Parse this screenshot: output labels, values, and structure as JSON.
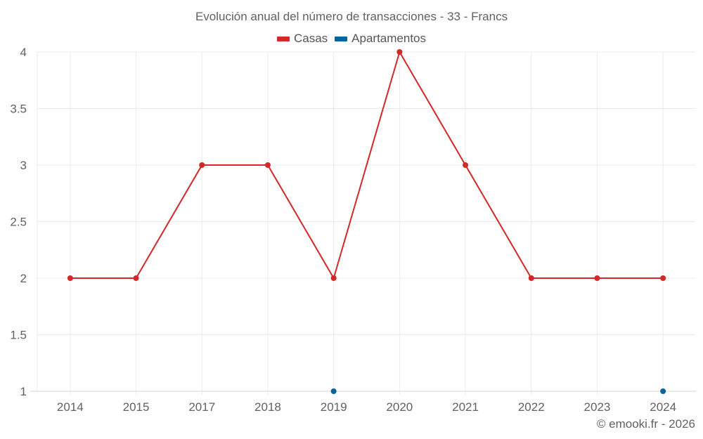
{
  "chart_data": {
    "type": "line",
    "title": "Evolución anual del número de transacciones - 33 - Francs",
    "categories": [
      "2014",
      "2015",
      "2017",
      "2018",
      "2019",
      "2020",
      "2021",
      "2022",
      "2023",
      "2024"
    ],
    "series": [
      {
        "name": "Casas",
        "color": "#d62728",
        "values": [
          2,
          2,
          3,
          3,
          2,
          4,
          3,
          2,
          2,
          2
        ]
      },
      {
        "name": "Apartamentos",
        "color": "#03669b",
        "values": [
          null,
          null,
          null,
          null,
          1,
          null,
          null,
          null,
          null,
          1
        ]
      }
    ],
    "xlabel": "",
    "ylabel": "",
    "ylim": [
      1,
      4
    ],
    "yticks": [
      "1",
      "1.5",
      "2",
      "2.5",
      "3",
      "3.5",
      "4"
    ],
    "grid": true,
    "legend_position": "top"
  },
  "footer": {
    "credit": "© emooki.fr - 2026"
  }
}
